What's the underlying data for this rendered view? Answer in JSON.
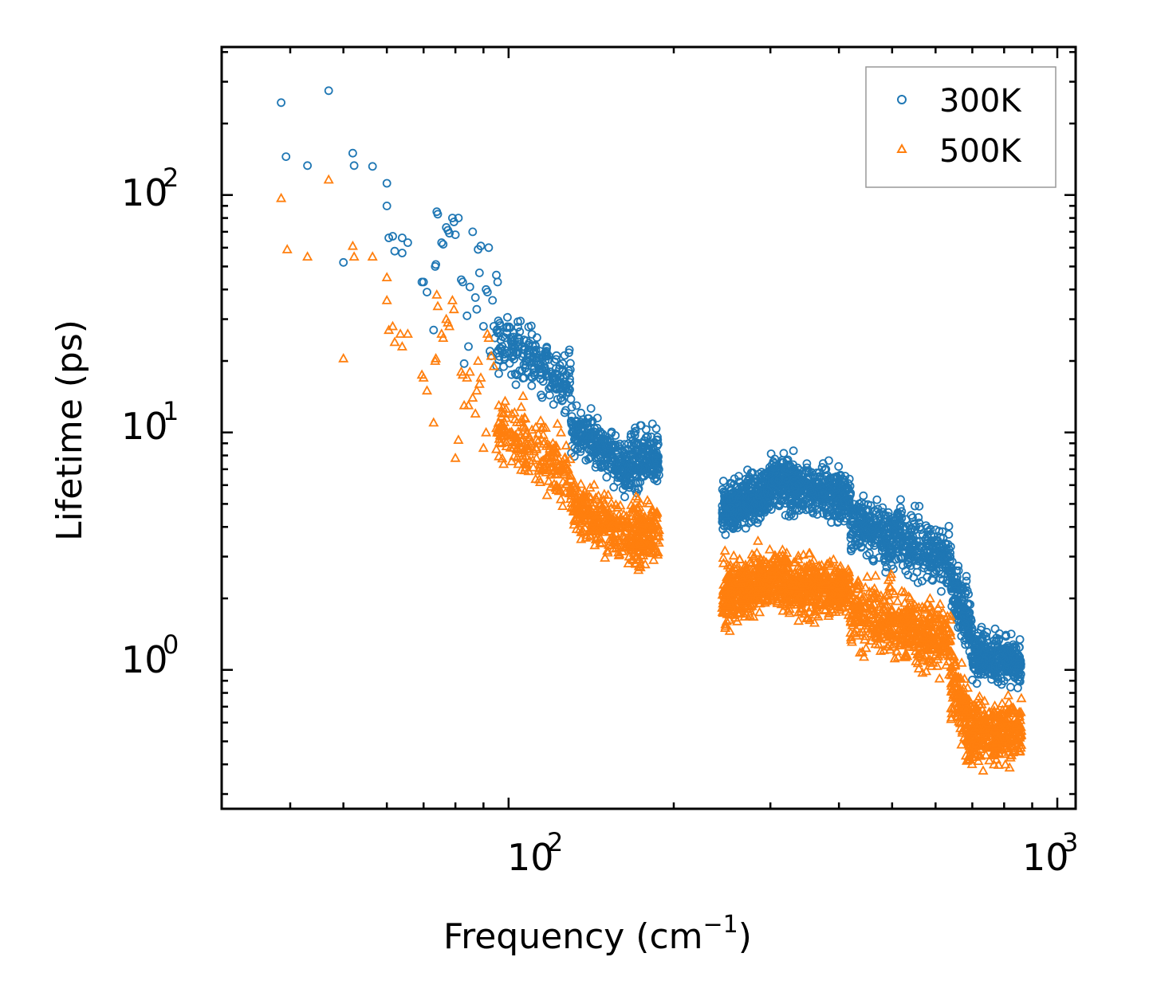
{
  "chart_data": {
    "type": "scatter",
    "title": "",
    "xlabel": "Frequency (cm",
    "xlabel_sup": "−1",
    "xlabel_close": ")",
    "ylabel": "Lifetime (ps)",
    "xscale": "log",
    "yscale": "log",
    "xlim": [
      30,
      1080
    ],
    "ylim": [
      0.26,
      420
    ],
    "legend_position": "top-right",
    "x_ticks": [
      {
        "value": 100,
        "base": "10",
        "exp": "2"
      },
      {
        "value": 1000,
        "base": "10",
        "exp": "3"
      }
    ],
    "y_ticks": [
      {
        "value": 1,
        "base": "10",
        "exp": "0"
      },
      {
        "value": 10,
        "base": "10",
        "exp": "1"
      },
      {
        "value": 100,
        "base": "10",
        "exp": "2"
      }
    ],
    "series": [
      {
        "name": "300K",
        "color": "#1f77b4",
        "marker": "circle",
        "points": [
          [
            38.5,
            245
          ],
          [
            39.3,
            145
          ],
          [
            43,
            133
          ],
          [
            47,
            275
          ],
          [
            50,
            52
          ],
          [
            52,
            150
          ],
          [
            52.3,
            133
          ],
          [
            56.5,
            132
          ],
          [
            60,
            112
          ],
          [
            60,
            90
          ],
          [
            60.5,
            66
          ],
          [
            61.5,
            67
          ],
          [
            62,
            58
          ],
          [
            64,
            66
          ],
          [
            64,
            57
          ],
          [
            65.5,
            63
          ],
          [
            69.5,
            43
          ],
          [
            70,
            43
          ],
          [
            71,
            39
          ],
          [
            73,
            27
          ],
          [
            73.5,
            50
          ],
          [
            73.7,
            51
          ],
          [
            74,
            85
          ],
          [
            74.3,
            83
          ],
          [
            75.5,
            63
          ],
          [
            76,
            62
          ],
          [
            77,
            73
          ],
          [
            77.5,
            71
          ],
          [
            78,
            69
          ],
          [
            79,
            80
          ],
          [
            79.5,
            77
          ],
          [
            80,
            68
          ],
          [
            81,
            80
          ],
          [
            82,
            44
          ],
          [
            82.5,
            43
          ],
          [
            83,
            19.5
          ],
          [
            84,
            31
          ],
          [
            84.5,
            23
          ],
          [
            85,
            41
          ],
          [
            86,
            70
          ],
          [
            87,
            37
          ],
          [
            87.5,
            33
          ],
          [
            88,
            59
          ],
          [
            88.5,
            47
          ],
          [
            89,
            61
          ],
          [
            90,
            28
          ],
          [
            91,
            40
          ],
          [
            91.5,
            39
          ],
          [
            92,
            60
          ],
          [
            92.5,
            22
          ],
          [
            93,
            21
          ],
          [
            93.5,
            36
          ],
          [
            94,
            28
          ],
          [
            94.5,
            25
          ],
          [
            95,
            46
          ],
          [
            95.5,
            43
          ]
        ]
      },
      {
        "name": "500K",
        "color": "#ff7f0e",
        "marker": "triangle",
        "points": [
          [
            38.5,
            97
          ],
          [
            39.5,
            59
          ],
          [
            43,
            55
          ],
          [
            47,
            116
          ],
          [
            50,
            20.5
          ],
          [
            52,
            61
          ],
          [
            52.3,
            55
          ],
          [
            56.5,
            55
          ],
          [
            60,
            45
          ],
          [
            60,
            36
          ],
          [
            60.5,
            27
          ],
          [
            61.5,
            28
          ],
          [
            62,
            24
          ],
          [
            63.5,
            26
          ],
          [
            64,
            23
          ],
          [
            65.5,
            26
          ],
          [
            69.5,
            17.5
          ],
          [
            70,
            17
          ],
          [
            71,
            15
          ],
          [
            73,
            11
          ],
          [
            73.5,
            20
          ],
          [
            73.7,
            20.5
          ],
          [
            74,
            38
          ],
          [
            74.3,
            34
          ],
          [
            75.5,
            26
          ],
          [
            76,
            25
          ],
          [
            77,
            30
          ],
          [
            77.5,
            29
          ],
          [
            78,
            28
          ],
          [
            79,
            36
          ],
          [
            79.5,
            33
          ],
          [
            80,
            7.8
          ],
          [
            81,
            9.3
          ],
          [
            82,
            18
          ],
          [
            82.5,
            17.5
          ],
          [
            83,
            13
          ],
          [
            84,
            17
          ],
          [
            84.5,
            13
          ],
          [
            85,
            18
          ],
          [
            86,
            14
          ],
          [
            87,
            12
          ],
          [
            87.5,
            15
          ],
          [
            88,
            20
          ],
          [
            88.5,
            16
          ],
          [
            89,
            17
          ],
          [
            90,
            8.6
          ],
          [
            91,
            10
          ],
          [
            91.5,
            26
          ],
          [
            92,
            25
          ],
          [
            93,
            21
          ],
          [
            94,
            19
          ],
          [
            95,
            8.5
          ],
          [
            96,
            13
          ],
          [
            97,
            9
          ],
          [
            98,
            12
          ],
          [
            99,
            11.5
          ]
        ]
      }
    ],
    "dense_regions": [
      {
        "series": "300K",
        "x_range": [
          95,
          130
        ],
        "y_start": [
          28,
          20
        ],
        "y_end": [
          18,
          14
        ],
        "spread": 0.12,
        "count": 220
      },
      {
        "series": "300K",
        "x_range": [
          130,
          165
        ],
        "y_start": [
          12,
          9
        ],
        "y_end": [
          8,
          6
        ],
        "spread": 0.1,
        "count": 260
      },
      {
        "series": "300K",
        "x_range": [
          165,
          188
        ],
        "y_start": [
          8,
          6.5
        ],
        "y_end": [
          9,
          7
        ],
        "spread": 0.12,
        "count": 180
      },
      {
        "series": "300K",
        "x_range": [
          245,
          300
        ],
        "y_start": [
          4.5,
          4.8
        ],
        "y_end": [
          5.5,
          6
        ],
        "spread": 0.1,
        "count": 380
      },
      {
        "series": "300K",
        "x_range": [
          300,
          420
        ],
        "y_start": [
          6.5,
          6
        ],
        "y_end": [
          5.5,
          5
        ],
        "spread": 0.1,
        "count": 520
      },
      {
        "series": "300K",
        "x_range": [
          420,
          640
        ],
        "y_start": [
          4.5,
          3.8
        ],
        "y_end": [
          3.2,
          2.6
        ],
        "spread": 0.12,
        "count": 520
      },
      {
        "series": "300K",
        "x_range": [
          640,
          700
        ],
        "y_start": [
          2.5,
          2.2
        ],
        "y_end": [
          1.6,
          1.2
        ],
        "spread": 0.12,
        "count": 160
      },
      {
        "series": "300K",
        "x_range": [
          700,
          860
        ],
        "y_start": [
          1.2,
          1.1
        ],
        "y_end": [
          1.15,
          1.0
        ],
        "spread": 0.1,
        "count": 320
      },
      {
        "series": "500K",
        "x_range": [
          95,
          130
        ],
        "y_start": [
          12,
          9
        ],
        "y_end": [
          7,
          6
        ],
        "spread": 0.13,
        "count": 220
      },
      {
        "series": "500K",
        "x_range": [
          130,
          165
        ],
        "y_start": [
          5.5,
          4.5
        ],
        "y_end": [
          4,
          3.2
        ],
        "spread": 0.11,
        "count": 260
      },
      {
        "series": "500K",
        "x_range": [
          165,
          188
        ],
        "y_start": [
          4,
          3.3
        ],
        "y_end": [
          4.2,
          3.5
        ],
        "spread": 0.13,
        "count": 180
      },
      {
        "series": "500K",
        "x_range": [
          245,
          300
        ],
        "y_start": [
          2.2,
          2.0
        ],
        "y_end": [
          2.5,
          2.2
        ],
        "spread": 0.12,
        "count": 380
      },
      {
        "series": "500K",
        "x_range": [
          300,
          420
        ],
        "y_start": [
          2.5,
          2.2
        ],
        "y_end": [
          2.3,
          2.0
        ],
        "spread": 0.12,
        "count": 520
      },
      {
        "series": "500K",
        "x_range": [
          420,
          640
        ],
        "y_start": [
          2.0,
          1.6
        ],
        "y_end": [
          1.5,
          1.1
        ],
        "spread": 0.14,
        "count": 520
      },
      {
        "series": "500K",
        "x_range": [
          640,
          700
        ],
        "y_start": [
          1.0,
          0.8
        ],
        "y_end": [
          0.55,
          0.42
        ],
        "spread": 0.14,
        "count": 160
      },
      {
        "series": "500K",
        "x_range": [
          700,
          860
        ],
        "y_start": [
          0.6,
          0.5
        ],
        "y_end": [
          0.6,
          0.5
        ],
        "spread": 0.13,
        "count": 320
      }
    ]
  }
}
